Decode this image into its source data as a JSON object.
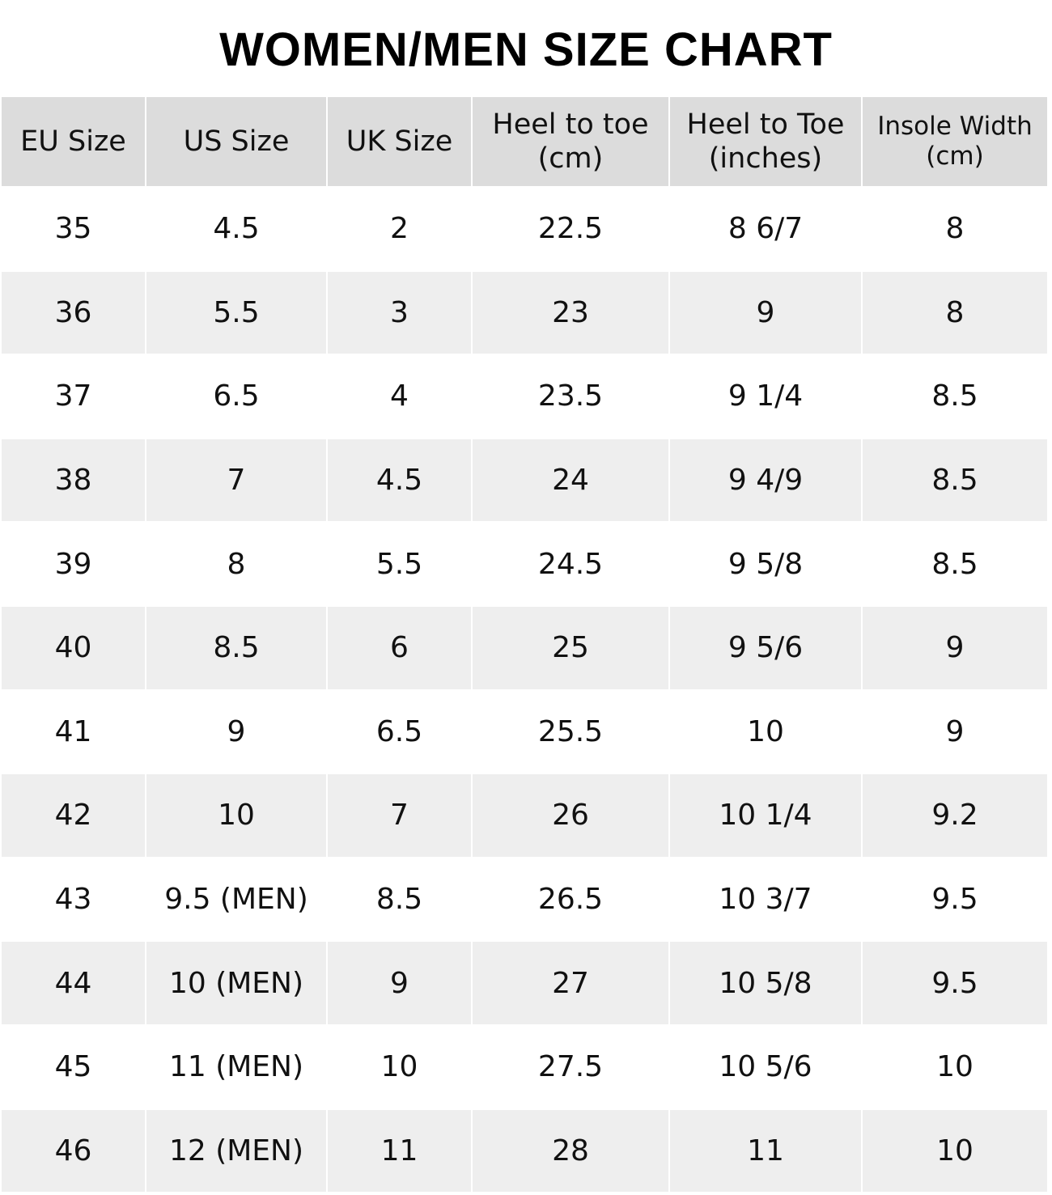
{
  "title": "WOMEN/MEN SIZE CHART",
  "colors": {
    "header_bg": "#dcdcdc",
    "alt_row_bg": "#eeeeee",
    "row_bg": "#ffffff"
  },
  "table": {
    "headers": [
      "EU Size",
      "US Size",
      "UK Size",
      "Heel to toe\n(cm)",
      "Heel to Toe\n(inches)",
      "Insole Width\n(cm)"
    ],
    "rows": [
      [
        "35",
        "4.5",
        "2",
        "22.5",
        "8 6/7",
        "8"
      ],
      [
        "36",
        "5.5",
        "3",
        "23",
        "9",
        "8"
      ],
      [
        "37",
        "6.5",
        "4",
        "23.5",
        "9 1/4",
        "8.5"
      ],
      [
        "38",
        "7",
        "4.5",
        "24",
        "9 4/9",
        "8.5"
      ],
      [
        "39",
        "8",
        "5.5",
        "24.5",
        "9 5/8",
        "8.5"
      ],
      [
        "40",
        "8.5",
        "6",
        "25",
        "9 5/6",
        "9"
      ],
      [
        "41",
        "9",
        "6.5",
        "25.5",
        "10",
        "9"
      ],
      [
        "42",
        "10",
        "7",
        "26",
        "10 1/4",
        "9.2"
      ],
      [
        "43",
        "9.5 (MEN)",
        "8.5",
        "26.5",
        "10 3/7",
        "9.5"
      ],
      [
        "44",
        "10 (MEN)",
        "9",
        "27",
        "10 5/8",
        "9.5"
      ],
      [
        "45",
        "11 (MEN)",
        "10",
        "27.5",
        "10 5/6",
        "10"
      ],
      [
        "46",
        "12 (MEN)",
        "11",
        "28",
        "11",
        "10"
      ]
    ]
  }
}
